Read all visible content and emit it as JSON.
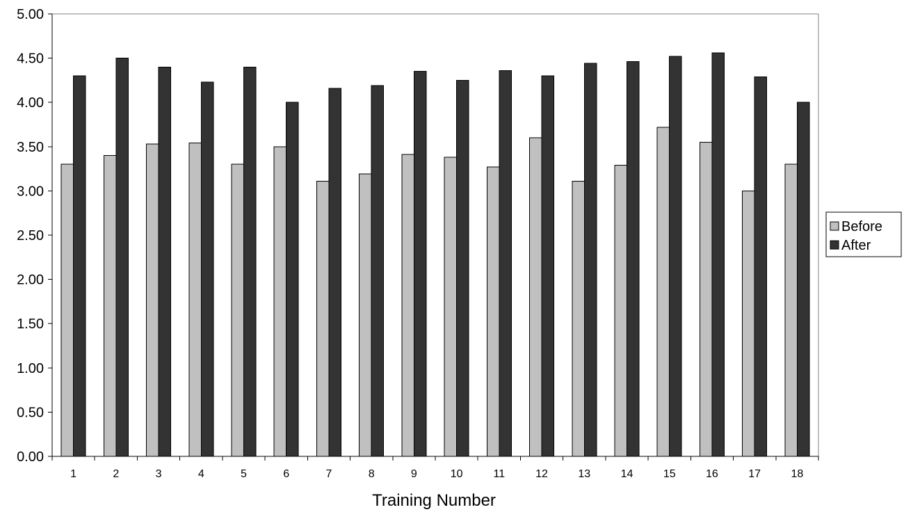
{
  "chart_data": {
    "type": "bar",
    "title": "",
    "xlabel": "Training Number",
    "ylabel": "",
    "ylim": [
      0,
      5
    ],
    "ytick_step": 0.5,
    "ytick_labels": [
      "0.00",
      "0.50",
      "1.00",
      "1.50",
      "2.00",
      "2.50",
      "3.00",
      "3.50",
      "4.00",
      "4.50",
      "5.00"
    ],
    "categories": [
      "1",
      "2",
      "3",
      "4",
      "5",
      "6",
      "7",
      "8",
      "9",
      "10",
      "11",
      "12",
      "13",
      "14",
      "15",
      "16",
      "17",
      "18"
    ],
    "series": [
      {
        "name": "Before",
        "color": "#c0c0c0",
        "values": [
          3.3,
          3.4,
          3.53,
          3.54,
          3.3,
          3.5,
          3.11,
          3.19,
          3.41,
          3.38,
          3.27,
          3.6,
          3.11,
          3.29,
          3.72,
          3.55,
          3.0,
          3.3
        ]
      },
      {
        "name": "After",
        "color": "#333333",
        "values": [
          4.3,
          4.5,
          4.4,
          4.23,
          4.4,
          4.0,
          4.16,
          4.19,
          4.35,
          4.25,
          4.36,
          4.3,
          4.44,
          4.46,
          4.52,
          4.56,
          4.29,
          4.0
        ]
      }
    ],
    "grid": false,
    "legend_position": "right"
  }
}
